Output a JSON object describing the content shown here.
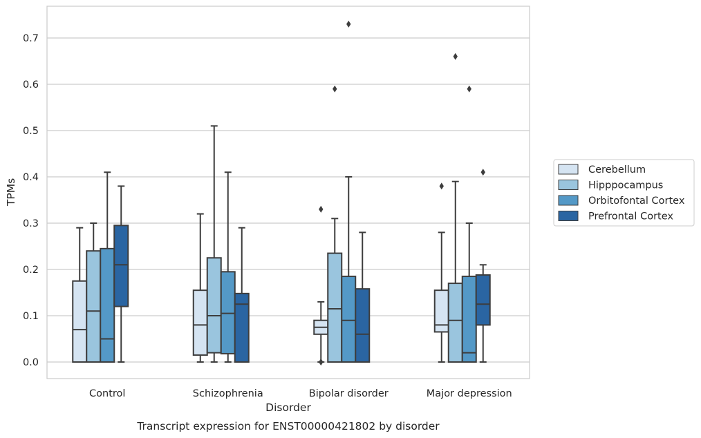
{
  "chart_data": {
    "type": "boxplot",
    "title": "Transcript expression for ENST00000421802 by disorder",
    "xlabel": "Disorder",
    "ylabel": "TPMs",
    "ylim": [
      -0.035,
      0.77
    ],
    "yticks": [
      "0.0",
      "0.1",
      "0.2",
      "0.3",
      "0.4",
      "0.5",
      "0.6",
      "0.7"
    ],
    "grid": true,
    "legend_position": "right",
    "categories": [
      "Control",
      "Schizophrenia",
      "Bipolar disorder",
      "Major depression"
    ],
    "series": [
      {
        "name": "Cerebellum",
        "color": "#d5e4f2",
        "boxes": [
          {
            "whislo": 0.0,
            "q1": 0.0,
            "med": 0.07,
            "q3": 0.175,
            "whishi": 0.29,
            "fliers": []
          },
          {
            "whislo": 0.0,
            "q1": 0.015,
            "med": 0.08,
            "q3": 0.155,
            "whishi": 0.32,
            "fliers": []
          },
          {
            "whislo": 0.0,
            "q1": 0.06,
            "med": 0.075,
            "q3": 0.09,
            "whishi": 0.13,
            "fliers": [
              0.0,
              0.0,
              0.33
            ]
          },
          {
            "whislo": 0.0,
            "q1": 0.065,
            "med": 0.08,
            "q3": 0.155,
            "whishi": 0.28,
            "fliers": [
              0.38
            ]
          }
        ]
      },
      {
        "name": "Hipppocampus",
        "color": "#9ac5de",
        "boxes": [
          {
            "whislo": 0.0,
            "q1": 0.0,
            "med": 0.11,
            "q3": 0.24,
            "whishi": 0.3,
            "fliers": []
          },
          {
            "whislo": 0.0,
            "q1": 0.02,
            "med": 0.1,
            "q3": 0.225,
            "whishi": 0.51,
            "fliers": []
          },
          {
            "whislo": 0.0,
            "q1": 0.0,
            "med": 0.115,
            "q3": 0.235,
            "whishi": 0.31,
            "fliers": [
              0.59
            ]
          },
          {
            "whislo": 0.0,
            "q1": 0.0,
            "med": 0.09,
            "q3": 0.17,
            "whishi": 0.39,
            "fliers": [
              0.66
            ]
          }
        ]
      },
      {
        "name": "Orbitofontal Cortex",
        "color": "#5499c7",
        "boxes": [
          {
            "whislo": 0.0,
            "q1": 0.0,
            "med": 0.05,
            "q3": 0.245,
            "whishi": 0.41,
            "fliers": []
          },
          {
            "whislo": 0.0,
            "q1": 0.018,
            "med": 0.105,
            "q3": 0.195,
            "whishi": 0.41,
            "fliers": []
          },
          {
            "whislo": 0.0,
            "q1": 0.0,
            "med": 0.09,
            "q3": 0.185,
            "whishi": 0.4,
            "fliers": [
              0.73
            ]
          },
          {
            "whislo": 0.0,
            "q1": 0.0,
            "med": 0.02,
            "q3": 0.185,
            "whishi": 0.3,
            "fliers": [
              0.59
            ]
          }
        ]
      },
      {
        "name": "Prefrontal Cortex",
        "color": "#2a65a2",
        "boxes": [
          {
            "whislo": 0.0,
            "q1": 0.12,
            "med": 0.21,
            "q3": 0.295,
            "whishi": 0.38,
            "fliers": []
          },
          {
            "whislo": 0.0,
            "q1": 0.0,
            "med": 0.125,
            "q3": 0.148,
            "whishi": 0.29,
            "fliers": []
          },
          {
            "whislo": 0.0,
            "q1": 0.0,
            "med": 0.06,
            "q3": 0.158,
            "whishi": 0.28,
            "fliers": []
          },
          {
            "whislo": 0.0,
            "q1": 0.08,
            "med": 0.125,
            "q3": 0.188,
            "whishi": 0.21,
            "fliers": [
              0.41
            ]
          }
        ]
      }
    ]
  }
}
